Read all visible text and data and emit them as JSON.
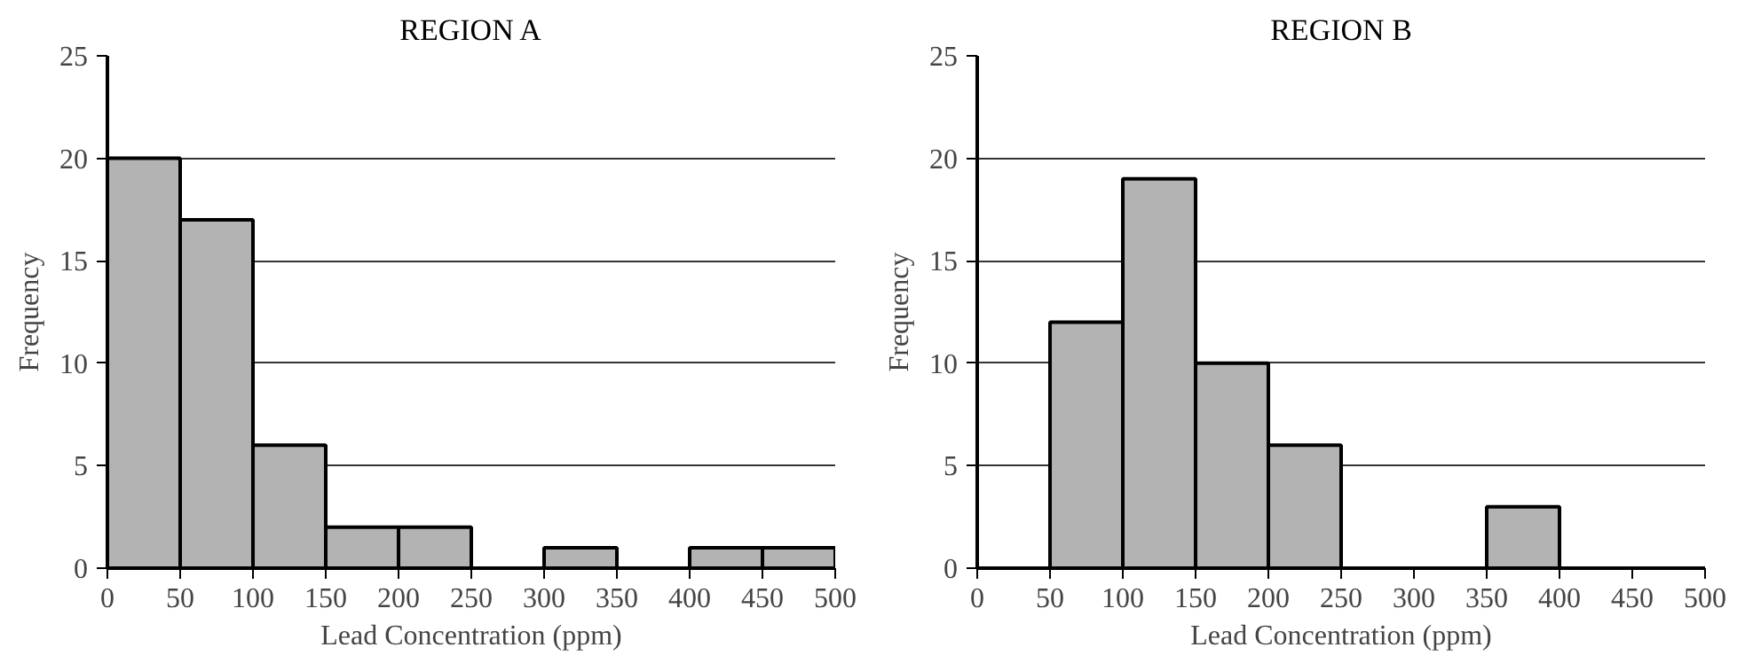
{
  "chart_data": [
    {
      "type": "histogram",
      "title": "REGION A",
      "xlabel": "Lead Concentration (ppm)",
      "ylabel": "Frequency",
      "bins": [
        0,
        50,
        100,
        150,
        200,
        250,
        300,
        350,
        400,
        450,
        500
      ],
      "values": [
        20,
        17,
        6,
        2,
        2,
        0,
        1,
        0,
        1,
        1
      ],
      "color": "#b3b3b3",
      "xlim": [
        0,
        500
      ],
      "xticks": [
        0,
        50,
        100,
        150,
        200,
        250,
        300,
        350,
        400,
        450,
        500
      ],
      "ylim": [
        0,
        25
      ],
      "yticks": [
        0,
        5,
        10,
        15,
        20,
        25
      ],
      "grid": "y"
    },
    {
      "type": "histogram",
      "title": "REGION B",
      "xlabel": "Lead Concentration (ppm)",
      "ylabel": "Frequency",
      "bins": [
        0,
        50,
        100,
        150,
        200,
        250,
        300,
        350,
        400,
        450,
        500
      ],
      "values": [
        0,
        12,
        19,
        10,
        6,
        0,
        0,
        3,
        0,
        0
      ],
      "color": "#b3b3b3",
      "xlim": [
        0,
        500
      ],
      "xticks": [
        0,
        50,
        100,
        150,
        200,
        250,
        300,
        350,
        400,
        450,
        500
      ],
      "ylim": [
        0,
        25
      ],
      "yticks": [
        0,
        5,
        10,
        15,
        20,
        25
      ],
      "grid": "y"
    }
  ]
}
